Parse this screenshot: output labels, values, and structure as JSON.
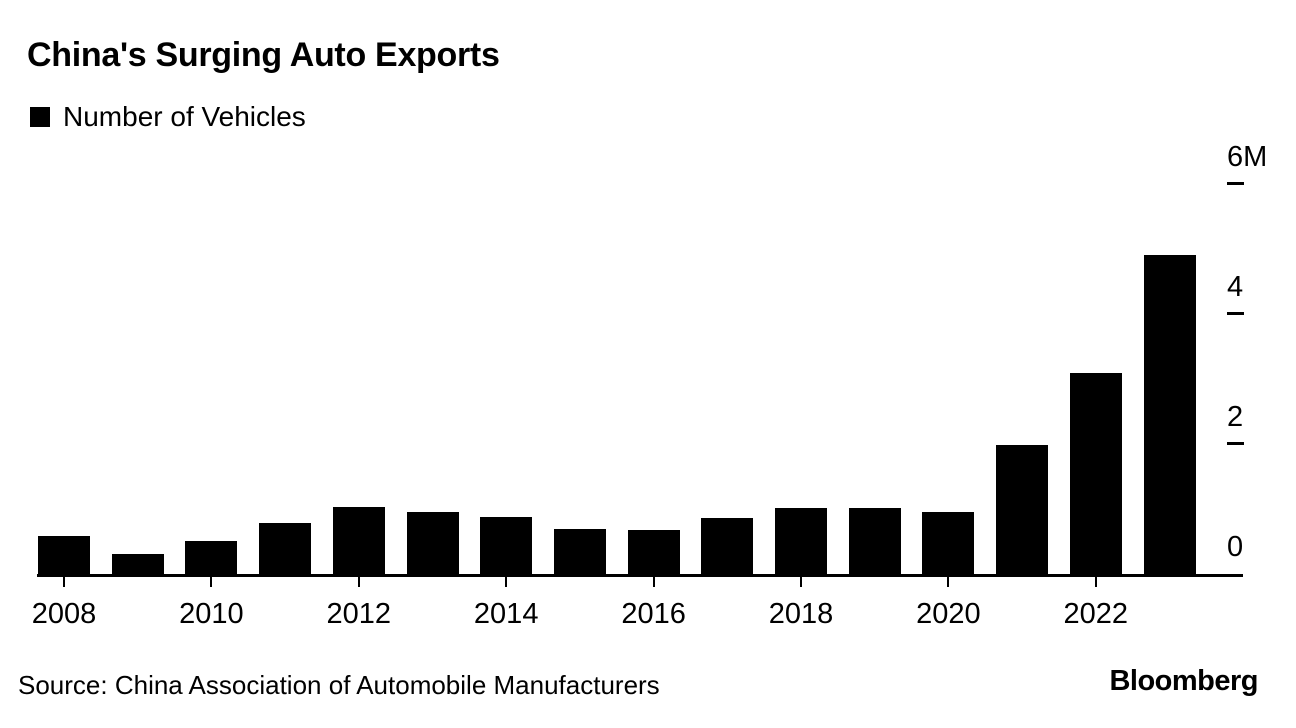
{
  "chart_data": {
    "type": "bar",
    "title": "China's Surging Auto Exports",
    "series_name": "Number of Vehicles",
    "categories": [
      "2008",
      "2009",
      "2010",
      "2011",
      "2012",
      "2013",
      "2014",
      "2015",
      "2016",
      "2017",
      "2018",
      "2019",
      "2020",
      "2021",
      "2022",
      "2023"
    ],
    "values": [
      0.63,
      0.36,
      0.55,
      0.83,
      1.08,
      1.0,
      0.92,
      0.74,
      0.72,
      0.91,
      1.06,
      1.06,
      1.0,
      2.03,
      3.14,
      4.95
    ],
    "unit": "M",
    "xlabel": "",
    "ylabel": "",
    "ylim": [
      0,
      6
    ],
    "yticks": [
      {
        "value": 0,
        "label": "0"
      },
      {
        "value": 2,
        "label": "2"
      },
      {
        "value": 4,
        "label": "4"
      },
      {
        "value": 6,
        "label": "6M"
      }
    ],
    "xtick_years": [
      "2008",
      "2010",
      "2012",
      "2014",
      "2016",
      "2018",
      "2020",
      "2022"
    ],
    "bar_color": "#000000",
    "background_color": "#ffffff",
    "y_axis_side": "right",
    "legend_position": "top-left",
    "grid": false
  },
  "footer": {
    "source": "Source: China Association of Automobile Manufacturers",
    "brand": "Bloomberg"
  }
}
